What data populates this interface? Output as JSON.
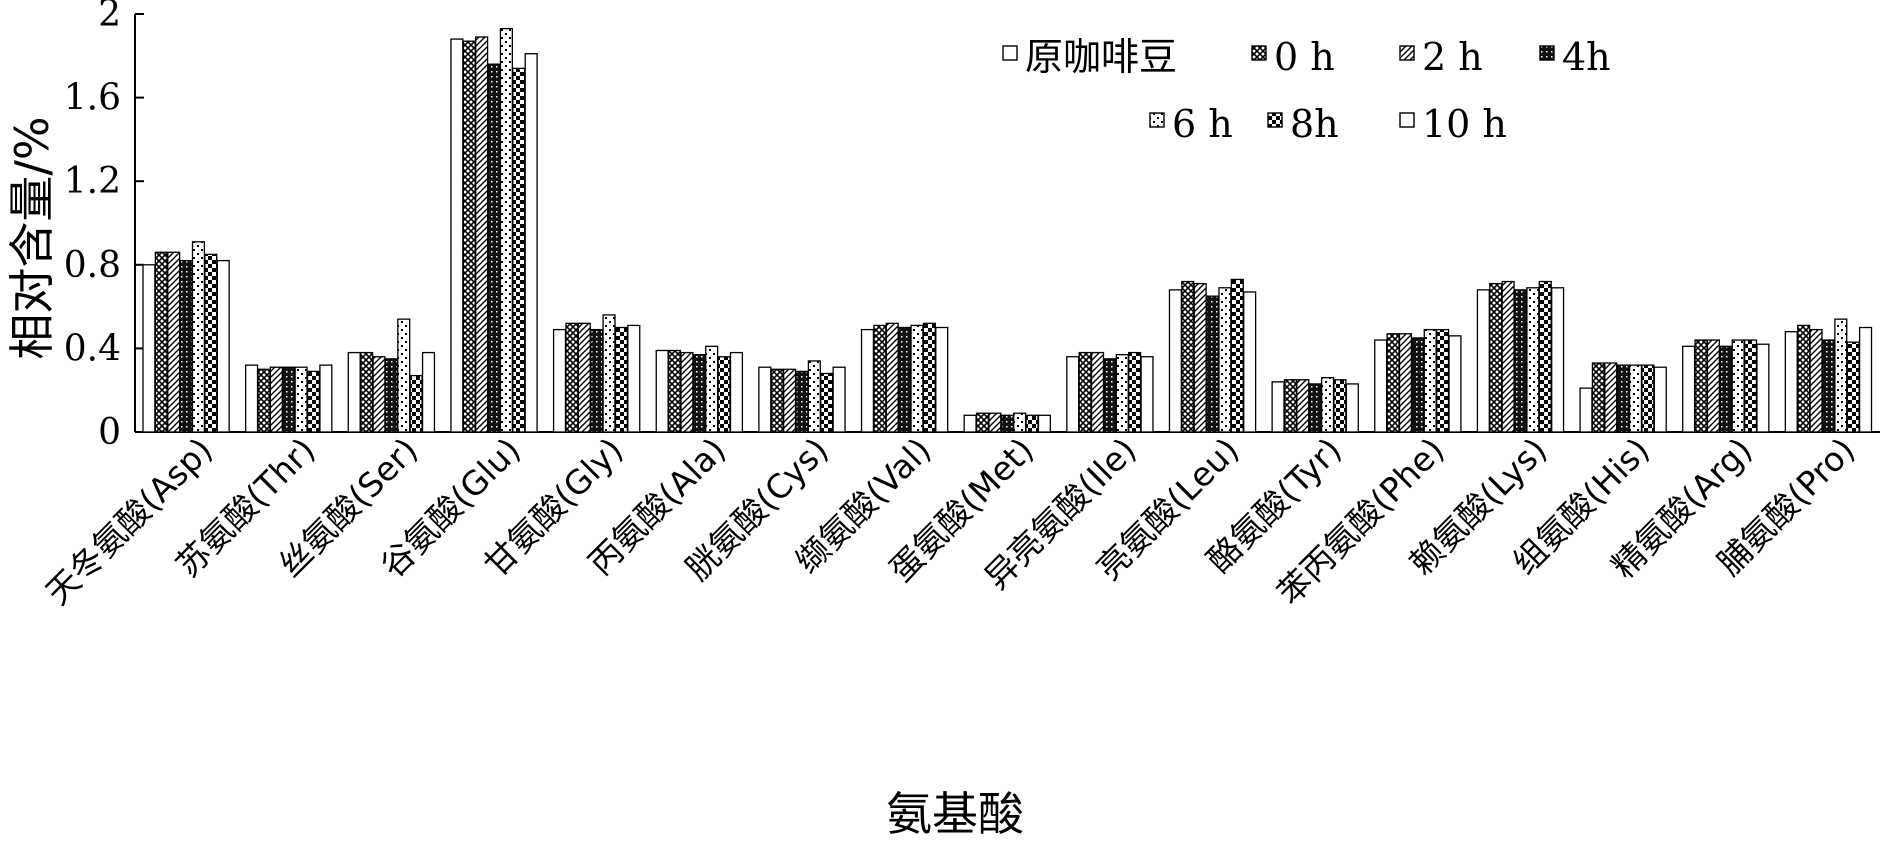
{
  "chart_data": {
    "type": "bar",
    "title": "",
    "xlabel": "氨基酸",
    "ylabel": "相对含量/%",
    "ylim": [
      0,
      2
    ],
    "yticks": [
      "0",
      "0.4",
      "0.8",
      "1.2",
      "1.6",
      "2"
    ],
    "grid": false,
    "legend_position": "top-right",
    "categories": [
      "天冬氨酸(Asp)",
      "苏氨酸(Thr)",
      "丝氨酸(Ser)",
      "谷氨酸(Glu)",
      "甘氨酸(Gly)",
      "丙氨酸(Ala)",
      "胱氨酸(Cys)",
      "缬氨酸(Val)",
      "蛋氨酸(Met)",
      "异亮氨酸(Ile)",
      "亮氨酸(Leu)",
      "酪氨酸(Tyr)",
      "苯丙氨酸(Phe)",
      "赖氨酸(Lys)",
      "组氨酸(His)",
      "精氨酸(Arg)",
      "脯氨酸(Pro)"
    ],
    "series": [
      {
        "name": "原咖啡豆",
        "pattern": "blank",
        "values": [
          0.8,
          0.32,
          0.38,
          1.88,
          0.49,
          0.39,
          0.31,
          0.49,
          0.08,
          0.36,
          0.68,
          0.24,
          0.44,
          0.68,
          0.21,
          0.41,
          0.48
        ]
      },
      {
        "name": "0 h",
        "pattern": "crosshatch",
        "values": [
          0.86,
          0.3,
          0.38,
          1.87,
          0.52,
          0.39,
          0.3,
          0.51,
          0.09,
          0.38,
          0.72,
          0.25,
          0.47,
          0.71,
          0.33,
          0.44,
          0.51
        ]
      },
      {
        "name": "2 h",
        "pattern": "diagonal",
        "values": [
          0.86,
          0.31,
          0.36,
          1.89,
          0.52,
          0.38,
          0.3,
          0.52,
          0.09,
          0.38,
          0.71,
          0.25,
          0.47,
          0.72,
          0.33,
          0.44,
          0.49
        ]
      },
      {
        "name": "4h",
        "pattern": "dense",
        "values": [
          0.82,
          0.31,
          0.35,
          1.76,
          0.49,
          0.37,
          0.29,
          0.5,
          0.08,
          0.35,
          0.65,
          0.23,
          0.45,
          0.68,
          0.32,
          0.41,
          0.44
        ]
      },
      {
        "name": "6 h",
        "pattern": "dots",
        "values": [
          0.91,
          0.31,
          0.54,
          1.93,
          0.56,
          0.41,
          0.34,
          0.51,
          0.09,
          0.37,
          0.69,
          0.26,
          0.49,
          0.69,
          0.32,
          0.44,
          0.54
        ]
      },
      {
        "name": "8h",
        "pattern": "checker",
        "values": [
          0.85,
          0.29,
          0.27,
          1.74,
          0.5,
          0.36,
          0.28,
          0.52,
          0.08,
          0.38,
          0.73,
          0.25,
          0.49,
          0.72,
          0.32,
          0.44,
          0.43
        ]
      },
      {
        "name": "10 h",
        "pattern": "blank",
        "values": [
          0.82,
          0.32,
          0.38,
          1.81,
          0.51,
          0.38,
          0.31,
          0.5,
          0.08,
          0.36,
          0.67,
          0.23,
          0.46,
          0.69,
          0.31,
          0.42,
          0.5
        ]
      }
    ]
  }
}
